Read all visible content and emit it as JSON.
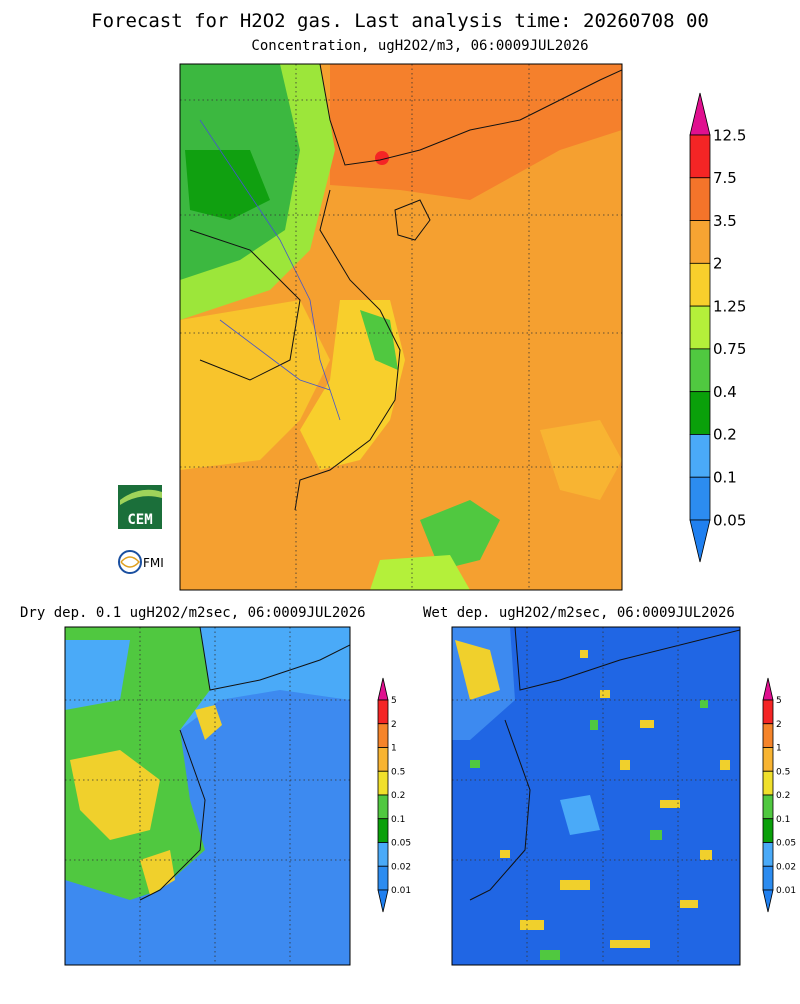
{
  "title": "Forecast for H2O2 gas. Last analysis time: 20260708 00",
  "logos": [
    "CEM",
    "FMI"
  ],
  "panels": [
    {
      "title": "Concentration, ugH2O2/m3, 06:0009JUL2026",
      "legend": {
        "labels": [
          "12.5",
          "7.5",
          "3.5",
          "2",
          "1.25",
          "0.75",
          "0.4",
          "0.2",
          "0.1",
          "0.05"
        ],
        "colors": [
          "#e0108f",
          "#f42525",
          "#f5742a",
          "#f7a432",
          "#f8cf2c",
          "#b4f03a",
          "#50c840",
          "#0aa00a",
          "#4aaaf8",
          "#2c8cf0",
          "#2080f0"
        ]
      }
    },
    {
      "title": "Dry dep. 0.1 ugH2O2/m2sec, 06:0009JUL2026",
      "legend": {
        "labels": [
          "5",
          "2",
          "1",
          "0.5",
          "0.2",
          "0.1",
          "0.05",
          "0.02",
          "0.01"
        ],
        "colors": [
          "#e0108f",
          "#f42525",
          "#f5842a",
          "#f8b432",
          "#f0e02c",
          "#50c840",
          "#0aa00a",
          "#4aaaf8",
          "#2c8cf0",
          "#2080f0"
        ]
      }
    },
    {
      "title": "Wet dep. ugH2O2/m2sec, 06:0009JUL2026",
      "legend": {
        "labels": [
          "5",
          "2",
          "1",
          "0.5",
          "0.2",
          "0.1",
          "0.05",
          "0.02",
          "0.01"
        ],
        "colors": [
          "#e0108f",
          "#f42525",
          "#f5842a",
          "#f8b432",
          "#f0e02c",
          "#50c840",
          "#0aa00a",
          "#4aaaf8",
          "#2c8cf0",
          "#2080f0"
        ]
      }
    }
  ]
}
